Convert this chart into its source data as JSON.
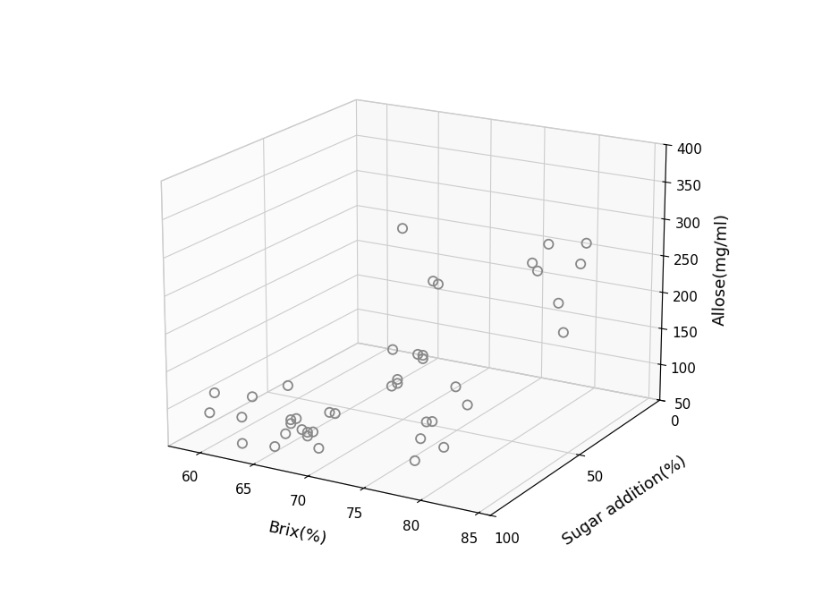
{
  "title": "",
  "xlabel": "Brix(%)",
  "ylabel": "Sugar addition(%)",
  "zlabel": "Allose(mg/ml)",
  "xlim": [
    57,
    86
  ],
  "ylim": [
    0,
    100
  ],
  "zlim": [
    50,
    400
  ],
  "xticks": [
    60,
    65,
    70,
    75,
    80,
    85
  ],
  "yticks": [
    0,
    50,
    100
  ],
  "zticks": [
    50,
    100,
    150,
    200,
    250,
    300,
    350,
    400
  ],
  "marker_edge_color": "#888888",
  "marker_size": 55,
  "points": [
    [
      59.0,
      50,
      65
    ],
    [
      60.5,
      0,
      50
    ],
    [
      61.0,
      100,
      107
    ],
    [
      61.5,
      100,
      135
    ],
    [
      61.5,
      0,
      228
    ],
    [
      63.0,
      0,
      50
    ],
    [
      63.5,
      0,
      50
    ],
    [
      63.5,
      0,
      45
    ],
    [
      64.0,
      100,
      75
    ],
    [
      64.0,
      100,
      110
    ],
    [
      64.5,
      0,
      160
    ],
    [
      65.0,
      0,
      157
    ],
    [
      65.0,
      100,
      140
    ],
    [
      67.0,
      100,
      80
    ],
    [
      68.0,
      100,
      100
    ],
    [
      68.5,
      100,
      120
    ],
    [
      68.5,
      100,
      115
    ],
    [
      69.0,
      100,
      123
    ],
    [
      69.5,
      100,
      110
    ],
    [
      70.0,
      100,
      103
    ],
    [
      70.0,
      100,
      108
    ],
    [
      70.5,
      100,
      110
    ],
    [
      71.0,
      100,
      90
    ],
    [
      72.0,
      100,
      140
    ],
    [
      72.5,
      100,
      140
    ],
    [
      74.0,
      0,
      210
    ],
    [
      74.5,
      0,
      200
    ],
    [
      75.5,
      0,
      240
    ],
    [
      76.5,
      0,
      160
    ],
    [
      77.0,
      0,
      120
    ],
    [
      77.5,
      100,
      190
    ],
    [
      78.0,
      100,
      195
    ],
    [
      78.0,
      100,
      200
    ],
    [
      78.5,
      0,
      220
    ],
    [
      79.0,
      0,
      250
    ],
    [
      79.5,
      100,
      100
    ],
    [
      80.0,
      100,
      130
    ],
    [
      80.5,
      100,
      153
    ],
    [
      81.0,
      100,
      155
    ],
    [
      82.0,
      100,
      125
    ],
    [
      83.0,
      100,
      205
    ],
    [
      84.0,
      100,
      185
    ]
  ],
  "background_color": "#ffffff",
  "elev": 18,
  "azim": -60
}
